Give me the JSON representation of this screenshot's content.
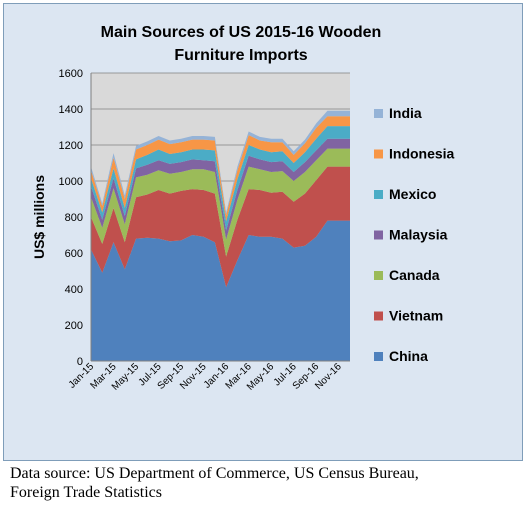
{
  "chart_data": {
    "type": "area",
    "stacked": true,
    "title_lines": [
      "Main Sources of US 2015-16 Wooden",
      "Furniture Imports"
    ],
    "ylabel": "US$ millions",
    "ylim": [
      0,
      1600
    ],
    "yticks": [
      0,
      200,
      400,
      600,
      800,
      1000,
      1200,
      1400,
      1600
    ],
    "grid": true,
    "legend_position": "right",
    "tick_labels": [
      {
        "label": "Jan-15",
        "index": 0
      },
      {
        "label": "Mar-15",
        "index": 2
      },
      {
        "label": "May-15",
        "index": 4
      },
      {
        "label": "Jul-15",
        "index": 6
      },
      {
        "label": "Sep-15",
        "index": 8
      },
      {
        "label": "Nov-15",
        "index": 10
      },
      {
        "label": "Jan-16",
        "index": 12
      },
      {
        "label": "Mar-16",
        "index": 14
      },
      {
        "label": "May-16",
        "index": 16
      },
      {
        "label": "Jul-16",
        "index": 18
      },
      {
        "label": "Sep-16",
        "index": 20
      },
      {
        "label": "Nov-16",
        "index": 22
      }
    ],
    "months": [
      "Jan-15",
      "Feb-15",
      "Mar-15",
      "Apr-15",
      "May-15",
      "Jun-15",
      "Jul-15",
      "Aug-15",
      "Sep-15",
      "Oct-15",
      "Nov-15",
      "Dec-15",
      "Jan-16",
      "Feb-16",
      "Mar-16",
      "Apr-16",
      "May-16",
      "Jun-16",
      "Jul-16",
      "Aug-16",
      "Sep-16",
      "Oct-16",
      "Nov-16",
      "Dec-16"
    ],
    "series": [
      {
        "name": "China",
        "color": "#4f81bd",
        "values": [
          620,
          490,
          660,
          510,
          680,
          685,
          680,
          665,
          670,
          700,
          690,
          660,
          410,
          560,
          700,
          690,
          690,
          680,
          630,
          640,
          690,
          780,
          780,
          780
        ]
      },
      {
        "name": "Vietnam",
        "color": "#c0504d",
        "values": [
          180,
          160,
          190,
          150,
          230,
          240,
          270,
          265,
          275,
          255,
          260,
          270,
          170,
          225,
          255,
          260,
          245,
          260,
          255,
          290,
          315,
          300,
          300,
          300
        ]
      },
      {
        "name": "Canada",
        "color": "#9bbb59",
        "values": [
          110,
          90,
          110,
          100,
          110,
          110,
          110,
          110,
          105,
          110,
          115,
          120,
          95,
          110,
          125,
          115,
          115,
          115,
          115,
          120,
          110,
          100,
          100,
          100
        ]
      },
      {
        "name": "Malaysia",
        "color": "#8064a2",
        "values": [
          60,
          45,
          55,
          45,
          50,
          55,
          55,
          55,
          55,
          55,
          50,
          60,
          50,
          55,
          60,
          55,
          55,
          55,
          50,
          55,
          55,
          55,
          55,
          55
        ]
      },
      {
        "name": "Mexico",
        "color": "#4bacc6",
        "values": [
          45,
          40,
          55,
          45,
          50,
          55,
          60,
          55,
          55,
          55,
          60,
          60,
          50,
          60,
          60,
          55,
          55,
          55,
          50,
          55,
          65,
          70,
          70,
          70
        ]
      },
      {
        "name": "Indonesia",
        "color": "#f79646",
        "values": [
          45,
          35,
          60,
          50,
          55,
          55,
          55,
          55,
          55,
          55,
          55,
          55,
          35,
          50,
          55,
          50,
          55,
          50,
          45,
          50,
          60,
          55,
          55,
          55
        ]
      },
      {
        "name": "India",
        "color": "#95b3d7",
        "values": [
          20,
          15,
          25,
          20,
          20,
          20,
          20,
          20,
          20,
          20,
          20,
          20,
          15,
          20,
          20,
          20,
          20,
          20,
          20,
          20,
          25,
          30,
          30,
          30
        ]
      }
    ]
  },
  "source_lines": [
    "Data source: US Department of Commerce, US Census Bureau,",
    "Foreign Trade Statistics"
  ]
}
